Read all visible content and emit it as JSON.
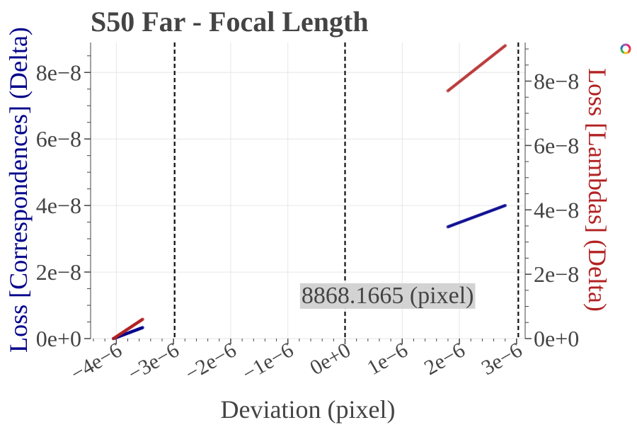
{
  "chart_data": {
    "type": "scatter",
    "title": "S50 Far - Focal Length",
    "xlabel": "Deviation (pixel)",
    "ylabel_left": "Loss [Correspondences] (Delta)",
    "ylabel_right": "Loss [Lambdas] (Delta)",
    "xlim": [
      -4.45e-06,
      3.15e-06
    ],
    "ylim_left": [
      0,
      8.9e-08
    ],
    "ylim_right": [
      0,
      9.2e-08
    ],
    "x_ticks": [
      {
        "value": -4e-06,
        "label": "−4e−6"
      },
      {
        "value": -3e-06,
        "label": "−3e−6"
      },
      {
        "value": -2e-06,
        "label": "−2e−6"
      },
      {
        "value": -1e-06,
        "label": "−1e−6"
      },
      {
        "value": 0,
        "label": "0e+0"
      },
      {
        "value": 1e-06,
        "label": "1e−6"
      },
      {
        "value": 2e-06,
        "label": "2e−6"
      },
      {
        "value": 3e-06,
        "label": "3e−6"
      }
    ],
    "y_ticks_left": [
      {
        "value": 0,
        "label": "0e+0"
      },
      {
        "value": 2e-08,
        "label": "2e−8"
      },
      {
        "value": 4e-08,
        "label": "4e−8"
      },
      {
        "value": 6e-08,
        "label": "6e−8"
      },
      {
        "value": 8e-08,
        "label": "8e−8"
      }
    ],
    "y_ticks_right": [
      {
        "value": 0,
        "label": "0e+0"
      },
      {
        "value": 2e-08,
        "label": "2e−8"
      },
      {
        "value": 4e-08,
        "label": "4e−8"
      },
      {
        "value": 6e-08,
        "label": "6e−8"
      },
      {
        "value": 8e-08,
        "label": "8e−8"
      }
    ],
    "grid": true,
    "vlines": [
      {
        "x": -2.98e-06,
        "style": "dashed"
      },
      {
        "x": 0,
        "style": "dashed"
      },
      {
        "x": 3.03e-06,
        "style": "dashed"
      }
    ],
    "annotation": {
      "text": "8868.1665 (pixel)",
      "x": 0,
      "y": 1.3e-08
    },
    "series": [
      {
        "axis": "left",
        "color": "#00008b",
        "segments": [
          {
            "x_start": -4.05e-06,
            "x_end": -3.54e-06,
            "y_start": 0,
            "y_end": 3.3e-09
          },
          {
            "x_start": 1.8e-06,
            "x_end": 2.8e-06,
            "y_start": 3.36e-08,
            "y_end": 4e-08
          }
        ]
      },
      {
        "axis": "right",
        "color": "#b22222",
        "segments": [
          {
            "x_start": -4.05e-06,
            "x_end": -3.54e-06,
            "y_start": 0,
            "y_end": 6e-09
          },
          {
            "x_start": 1.8e-06,
            "x_end": 2.8e-06,
            "y_start": 7.7e-08,
            "y_end": 9.1e-08
          }
        ]
      }
    ]
  }
}
